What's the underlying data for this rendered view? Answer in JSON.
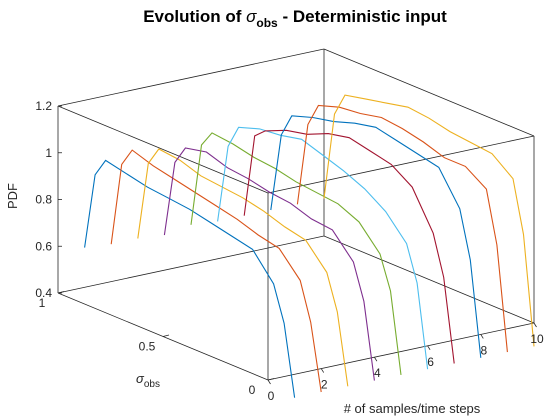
{
  "chart_data": {
    "type": "line",
    "title": {
      "prefix": "Evolution of ",
      "symbol": "σ",
      "subscript": "obs",
      "suffix": " - Deterministic input"
    },
    "xlabel": "# of samples/time steps",
    "ylabel": {
      "symbol": "σ",
      "subscript": "obs"
    },
    "zlabel": "PDF",
    "x_ticks": [
      "0",
      "2",
      "4",
      "6",
      "8",
      "10"
    ],
    "y_ticks": [
      "0",
      "0.5",
      "1"
    ],
    "z_ticks": [
      "0.4",
      "0.6",
      "0.8",
      "1",
      "1.2"
    ],
    "xlim": [
      0,
      10
    ],
    "ylim": [
      0,
      1
    ],
    "zlim": [
      0.4,
      1.2
    ],
    "grid": false,
    "box": true,
    "colors": [
      "#0072BD",
      "#D95319",
      "#EDB120",
      "#7E2F8E",
      "#77AC30",
      "#4DBEEE",
      "#A2142F",
      "#0072BD",
      "#D95319",
      "#EDB120"
    ],
    "series": [
      {
        "x": 1,
        "points": [
          [
            1.0,
            0.57
          ],
          [
            0.95,
            0.9
          ],
          [
            0.9,
            0.98
          ],
          [
            0.8,
            0.96
          ],
          [
            0.7,
            0.94
          ],
          [
            0.6,
            0.93
          ],
          [
            0.5,
            0.92
          ],
          [
            0.4,
            0.9
          ],
          [
            0.3,
            0.88
          ],
          [
            0.2,
            0.86
          ],
          [
            0.1,
            0.75
          ],
          [
            0.05,
            0.6
          ],
          [
            0.0,
            0.3
          ]
        ]
      },
      {
        "x": 2,
        "points": [
          [
            1.0,
            0.56
          ],
          [
            0.95,
            0.92
          ],
          [
            0.9,
            1.0
          ],
          [
            0.8,
            0.97
          ],
          [
            0.7,
            0.95
          ],
          [
            0.6,
            0.93
          ],
          [
            0.5,
            0.91
          ],
          [
            0.4,
            0.89
          ],
          [
            0.3,
            0.86
          ],
          [
            0.2,
            0.84
          ],
          [
            0.1,
            0.74
          ],
          [
            0.05,
            0.58
          ],
          [
            0.0,
            0.3
          ]
        ]
      },
      {
        "x": 3,
        "points": [
          [
            1.0,
            0.56
          ],
          [
            0.95,
            0.9
          ],
          [
            0.9,
            0.98
          ],
          [
            0.8,
            0.97
          ],
          [
            0.7,
            0.94
          ],
          [
            0.6,
            0.93
          ],
          [
            0.5,
            0.92
          ],
          [
            0.4,
            0.9
          ],
          [
            0.3,
            0.87
          ],
          [
            0.2,
            0.85
          ],
          [
            0.1,
            0.75
          ],
          [
            0.05,
            0.6
          ],
          [
            0.0,
            0.3
          ]
        ]
      },
      {
        "x": 4,
        "points": [
          [
            1.0,
            0.55
          ],
          [
            0.95,
            0.88
          ],
          [
            0.9,
            0.96
          ],
          [
            0.8,
            0.98
          ],
          [
            0.7,
            0.95
          ],
          [
            0.6,
            0.94
          ],
          [
            0.5,
            0.92
          ],
          [
            0.4,
            0.91
          ],
          [
            0.3,
            0.88
          ],
          [
            0.2,
            0.87
          ],
          [
            0.1,
            0.77
          ],
          [
            0.05,
            0.62
          ],
          [
            0.0,
            0.3
          ]
        ]
      },
      {
        "x": 5,
        "points": [
          [
            1.0,
            0.57
          ],
          [
            0.95,
            0.93
          ],
          [
            0.9,
            1.0
          ],
          [
            0.8,
            0.99
          ],
          [
            0.7,
            0.97
          ],
          [
            0.6,
            0.96
          ],
          [
            0.5,
            0.94
          ],
          [
            0.4,
            0.93
          ],
          [
            0.3,
            0.92
          ],
          [
            0.2,
            0.88
          ],
          [
            0.1,
            0.78
          ],
          [
            0.05,
            0.64
          ],
          [
            0.0,
            0.3
          ]
        ]
      },
      {
        "x": 6,
        "points": [
          [
            1.0,
            0.56
          ],
          [
            0.95,
            0.9
          ],
          [
            0.9,
            1.0
          ],
          [
            0.8,
            1.03
          ],
          [
            0.7,
            1.04
          ],
          [
            0.6,
            1.06
          ],
          [
            0.5,
            1.03
          ],
          [
            0.4,
            1.0
          ],
          [
            0.3,
            0.96
          ],
          [
            0.2,
            0.9
          ],
          [
            0.1,
            0.8
          ],
          [
            0.05,
            0.65
          ],
          [
            0.0,
            0.3
          ]
        ]
      },
      {
        "x": 7,
        "points": [
          [
            1.0,
            0.56
          ],
          [
            0.95,
            0.92
          ],
          [
            0.9,
            0.96
          ],
          [
            0.8,
            1.0
          ],
          [
            0.7,
            1.02
          ],
          [
            0.6,
            1.06
          ],
          [
            0.5,
            1.08
          ],
          [
            0.4,
            1.06
          ],
          [
            0.3,
            1.04
          ],
          [
            0.2,
            0.98
          ],
          [
            0.1,
            0.82
          ],
          [
            0.05,
            0.65
          ],
          [
            0.0,
            0.3
          ]
        ]
      },
      {
        "x": 8,
        "points": [
          [
            1.0,
            0.56
          ],
          [
            0.95,
            0.9
          ],
          [
            0.9,
            1.0
          ],
          [
            0.8,
            1.03
          ],
          [
            0.7,
            1.05
          ],
          [
            0.6,
            1.08
          ],
          [
            0.5,
            1.1
          ],
          [
            0.4,
            1.08
          ],
          [
            0.3,
            1.06
          ],
          [
            0.2,
            1.04
          ],
          [
            0.1,
            0.9
          ],
          [
            0.05,
            0.7
          ],
          [
            0.0,
            0.3
          ]
        ]
      },
      {
        "x": 9,
        "points": [
          [
            1.0,
            0.56
          ],
          [
            0.95,
            0.92
          ],
          [
            0.9,
            1.02
          ],
          [
            0.8,
            1.05
          ],
          [
            0.7,
            1.06
          ],
          [
            0.6,
            1.08
          ],
          [
            0.5,
            1.07
          ],
          [
            0.4,
            1.05
          ],
          [
            0.3,
            1.02
          ],
          [
            0.2,
            1.02
          ],
          [
            0.1,
            0.96
          ],
          [
            0.05,
            0.74
          ],
          [
            0.0,
            0.3
          ]
        ]
      },
      {
        "x": 10,
        "points": [
          [
            1.0,
            0.56
          ],
          [
            0.95,
            0.94
          ],
          [
            0.9,
            1.04
          ],
          [
            0.8,
            1.06
          ],
          [
            0.7,
            1.08
          ],
          [
            0.6,
            1.1
          ],
          [
            0.5,
            1.09
          ],
          [
            0.4,
            1.07
          ],
          [
            0.3,
            1.06
          ],
          [
            0.2,
            1.05
          ],
          [
            0.1,
            0.98
          ],
          [
            0.05,
            0.76
          ],
          [
            0.0,
            0.3
          ]
        ]
      }
    ]
  }
}
